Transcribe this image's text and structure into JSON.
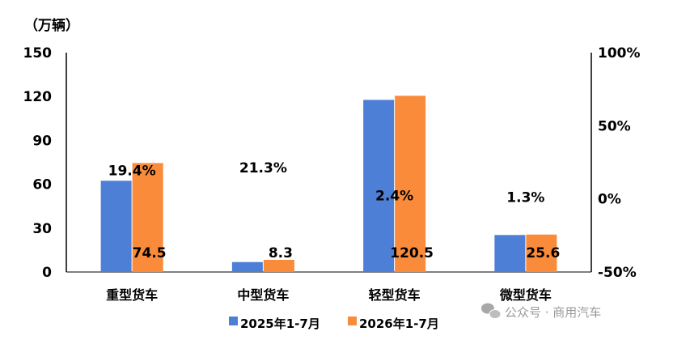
{
  "watermark": {
    "text": "公众号 · 商用汽车",
    "icon": "wechat-icon"
  },
  "chart_data": {
    "type": "bar",
    "unit_label": "（万辆）",
    "categories": [
      "重型货车",
      "中型货车",
      "轻型货车",
      "微型货车"
    ],
    "series": [
      {
        "name": "2025年1-7月",
        "color": "#4e7fd6",
        "values": [
          62.4,
          6.8,
          117.7,
          25.3
        ]
      },
      {
        "name": "2026年1-7月",
        "color": "#f98b3a",
        "values": [
          74.5,
          8.3,
          120.5,
          25.6
        ]
      }
    ],
    "value_labels": [
      "74.5",
      "8.3",
      "120.5",
      "25.6"
    ],
    "growth_labels": [
      "19.4%",
      "21.3%",
      "2.4%",
      "1.3%"
    ],
    "growth_values": [
      19.4,
      21.3,
      2.4,
      1.3
    ],
    "y_left": {
      "min": 0,
      "max": 150,
      "ticks": [
        0,
        30,
        60,
        90,
        120,
        150
      ],
      "tick_labels": [
        "0",
        "30",
        "60",
        "90",
        "120",
        "150"
      ]
    },
    "y_right": {
      "min": -50,
      "max": 100,
      "ticks": [
        -50,
        0,
        50,
        100
      ],
      "tick_labels": [
        "-50%",
        "0%",
        "50%",
        "100%"
      ]
    },
    "legend_position": "bottom",
    "grid": false
  }
}
